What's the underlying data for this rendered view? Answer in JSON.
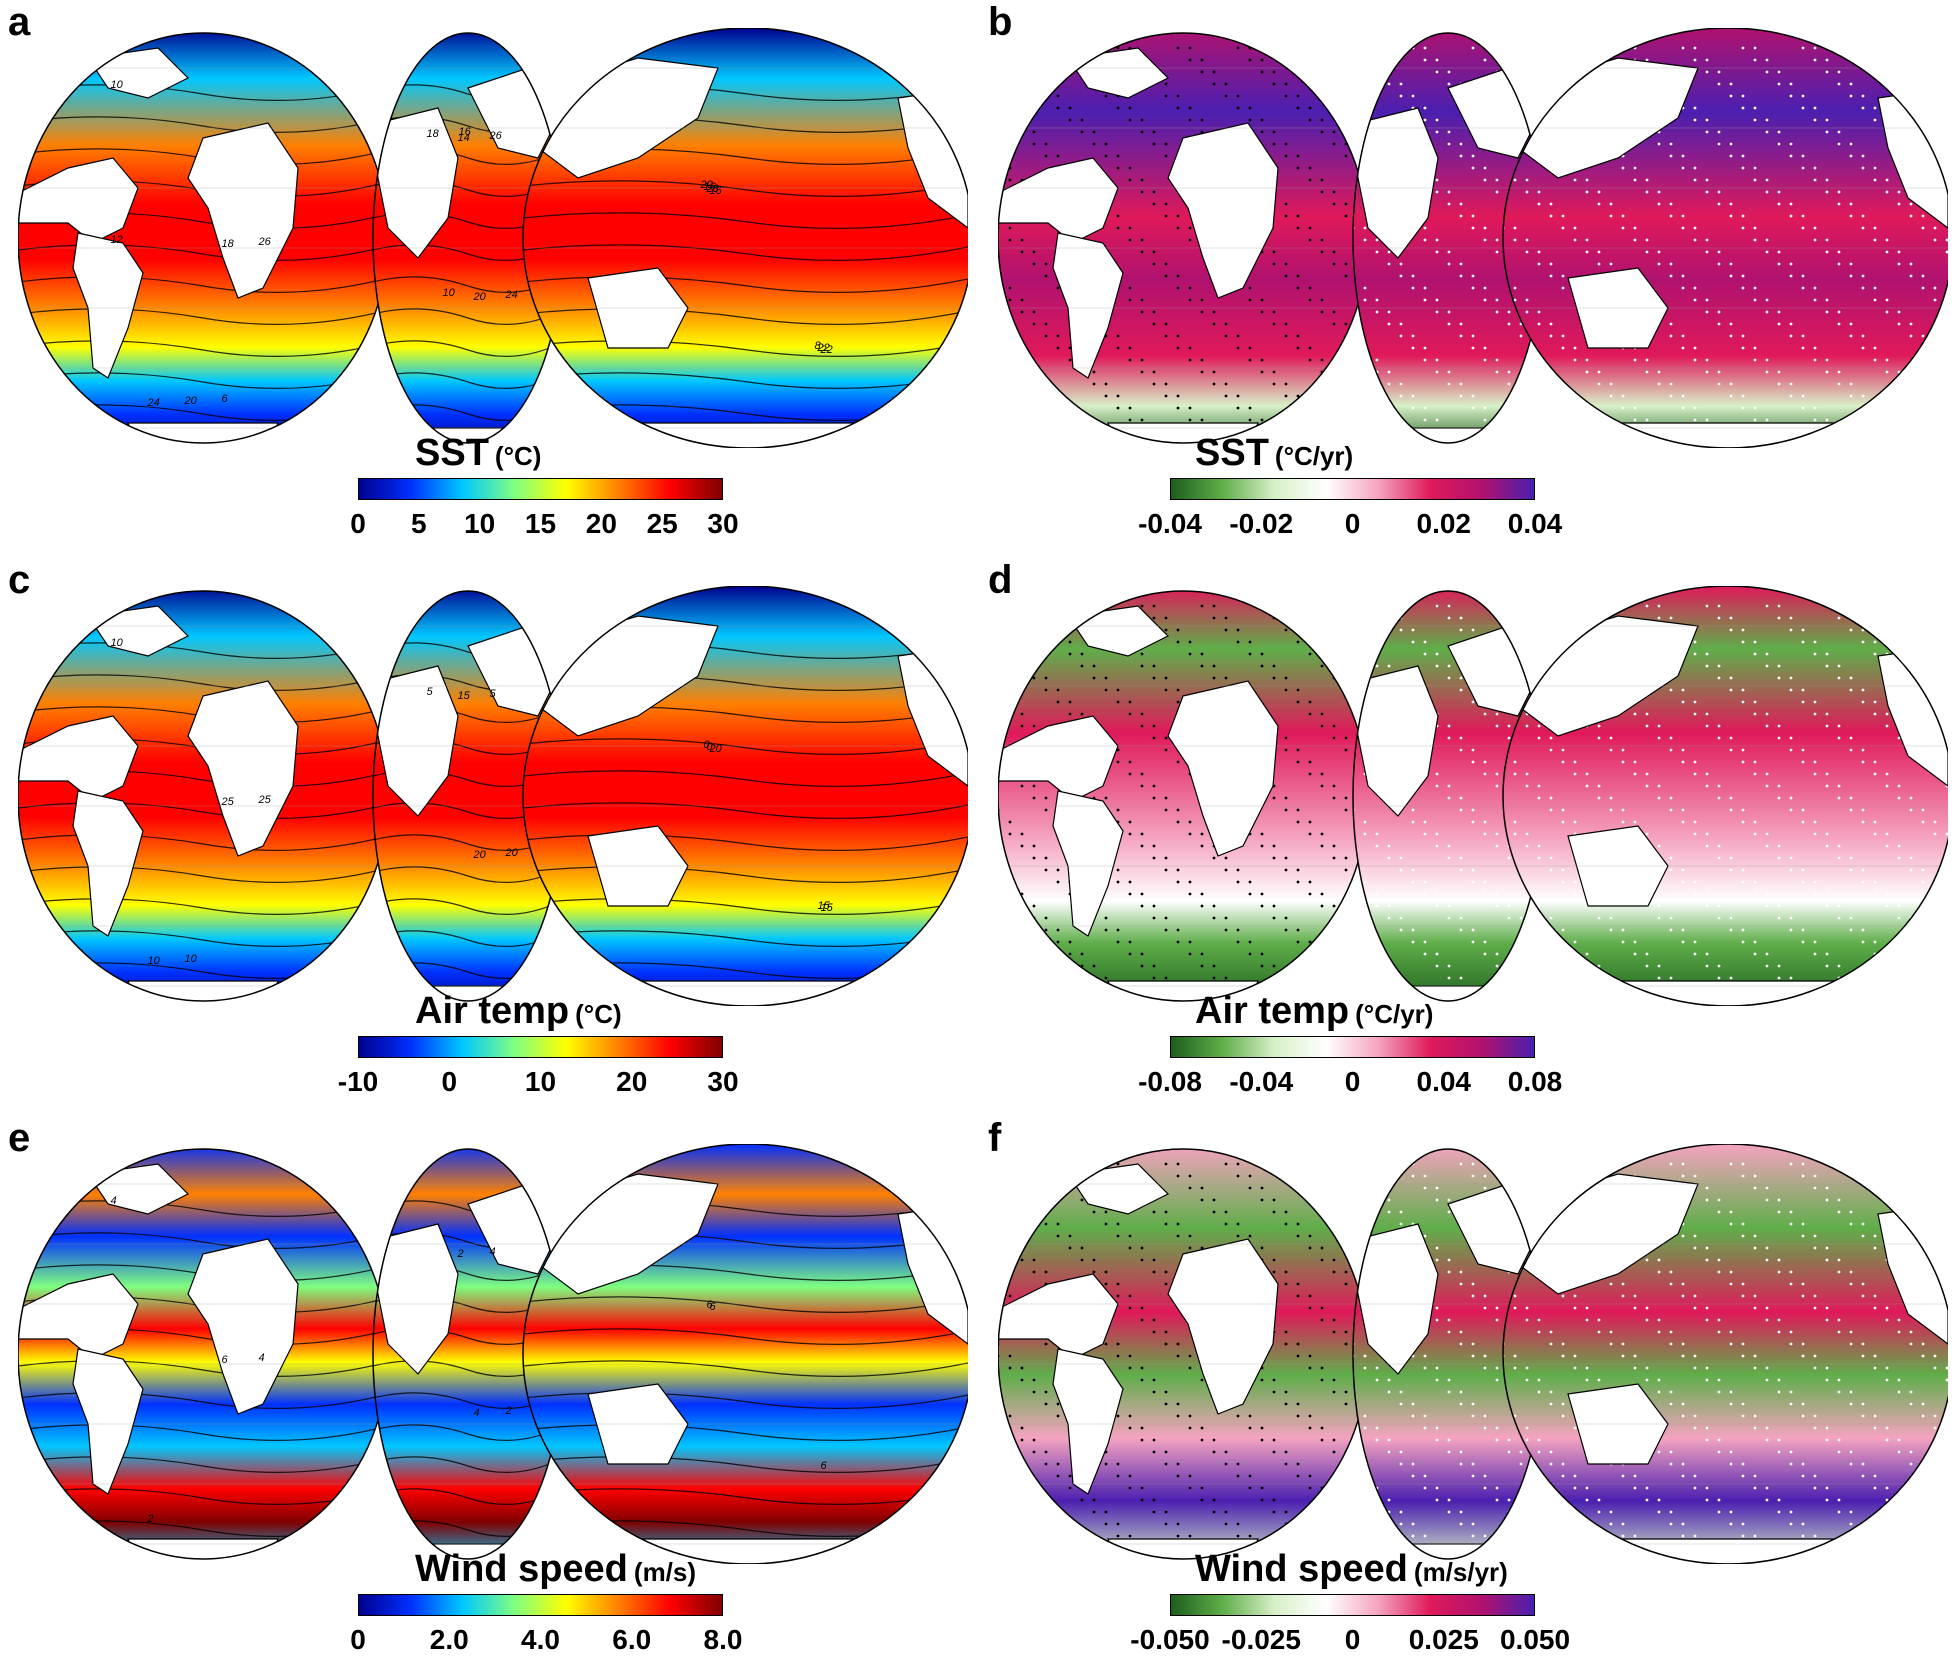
{
  "panels": [
    {
      "letter": "a",
      "title": "SST",
      "unit": "(°C)",
      "ticks": [
        "0",
        "5",
        "10",
        "15",
        "20",
        "25",
        "30"
      ],
      "scale": "jet",
      "contour_labels": [
        "10",
        "14",
        "16",
        "18",
        "20",
        "22",
        "24",
        "26",
        "28",
        "26",
        "24",
        "22",
        "20",
        "18",
        "16",
        "12",
        "10",
        "8",
        "6",
        "16",
        "20"
      ]
    },
    {
      "letter": "b",
      "title": "SST",
      "unit": "(°C/yr)",
      "ticks": [
        "-0.04",
        "-0.02",
        "0",
        "0.02",
        "0.04"
      ],
      "scale": "diverge"
    },
    {
      "letter": "c",
      "title": "Air temp",
      "unit": "(°C)",
      "ticks": [
        "-10",
        "0",
        "10",
        "20",
        "30"
      ],
      "scale": "jet",
      "contour_labels": [
        "10",
        "15",
        "20",
        "25",
        "20",
        "15",
        "10",
        "5",
        "0",
        "25",
        "20",
        "15",
        "10",
        "5",
        "0"
      ]
    },
    {
      "letter": "d",
      "title": "Air temp",
      "unit": "(°C/yr)",
      "ticks": [
        "-0.08",
        "-0.04",
        "0",
        "0.04",
        "0.08"
      ],
      "scale": "diverge"
    },
    {
      "letter": "e",
      "title": "Wind speed",
      "unit": "(m/s)",
      "ticks": [
        "0",
        "2.0",
        "4.0",
        "6.0",
        "8.0"
      ],
      "scale": "jet",
      "contour_labels": [
        "4",
        "2",
        "6",
        "6",
        "4",
        "6",
        "2",
        "4",
        "6",
        "4",
        "2"
      ]
    },
    {
      "letter": "f",
      "title": "Wind speed",
      "unit": "(m/s/yr)",
      "ticks": [
        "-0.050",
        "-0.025",
        "0",
        "0.025",
        "0.050"
      ],
      "scale": "diverge"
    }
  ],
  "colors": {
    "jet": [
      "#00008f",
      "#0030ff",
      "#00c8ff",
      "#7fff7f",
      "#ffff00",
      "#ff8000",
      "#ff0000",
      "#800000"
    ],
    "diverge": [
      "#1d5e1d",
      "#5fae4a",
      "#d8f0c8",
      "#ffffff",
      "#f5a3c0",
      "#e0195a",
      "#b0126f",
      "#4b1fb0"
    ],
    "land": "#ffffff",
    "outline": "#000000"
  }
}
